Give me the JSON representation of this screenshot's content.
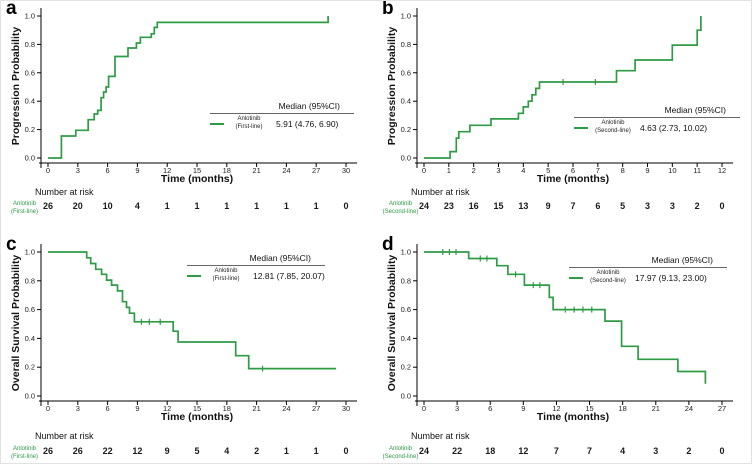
{
  "colors": {
    "curve_green": "#2e9b45",
    "axis": "#000000",
    "text": "#111111",
    "risk_label_green": "#2e9b45"
  },
  "chart_data": [
    {
      "type": "line",
      "panel_label": "a",
      "ylabel": "Progression Probability",
      "xlabel": "Time (months)",
      "x_ticks": [
        0,
        3,
        6,
        9,
        12,
        15,
        18,
        21,
        24,
        27,
        30
      ],
      "y_tick_labels": [
        "0.0",
        "0.2",
        "0.4",
        "0.6",
        "0.8",
        "1.0"
      ],
      "xlim": [
        0,
        30
      ],
      "ylim": [
        0,
        1
      ],
      "grid": false,
      "legend": {
        "header": "Median (95%CI)",
        "name_line1": "Anlotinib",
        "name_line2": "(First-line)",
        "value": "5.91 (4.76, 6.90)",
        "position": "lower-right"
      },
      "series": [
        {
          "name": "Anlotinib (First-line)",
          "color": "#2e9b45",
          "step_points": [
            [
              0,
              0
            ],
            [
              1.35,
              0
            ],
            [
              1.35,
              0.155
            ],
            [
              2.8,
              0.155
            ],
            [
              2.8,
              0.195
            ],
            [
              4.05,
              0.195
            ],
            [
              4.05,
              0.27
            ],
            [
              4.65,
              0.27
            ],
            [
              4.65,
              0.31
            ],
            [
              5.0,
              0.31
            ],
            [
              5.0,
              0.335
            ],
            [
              5.35,
              0.335
            ],
            [
              5.35,
              0.425
            ],
            [
              5.6,
              0.425
            ],
            [
              5.6,
              0.465
            ],
            [
              5.85,
              0.465
            ],
            [
              5.85,
              0.5
            ],
            [
              6.1,
              0.5
            ],
            [
              6.1,
              0.575
            ],
            [
              6.75,
              0.575
            ],
            [
              6.75,
              0.715
            ],
            [
              8.05,
              0.715
            ],
            [
              8.05,
              0.775
            ],
            [
              8.9,
              0.775
            ],
            [
              8.9,
              0.81
            ],
            [
              9.3,
              0.81
            ],
            [
              9.3,
              0.85
            ],
            [
              10.4,
              0.85
            ],
            [
              10.4,
              0.875
            ],
            [
              10.7,
              0.875
            ],
            [
              10.7,
              0.92
            ],
            [
              11.0,
              0.92
            ],
            [
              11.0,
              0.955
            ],
            [
              28.2,
              0.955
            ],
            [
              28.2,
              1.0
            ]
          ],
          "censor_marks": []
        }
      ],
      "number_at_risk": {
        "title": "Number at risk",
        "row_label_line1": "Anlotinib",
        "row_label_line2": "(First-line)",
        "values": [
          26,
          20,
          10,
          4,
          1,
          1,
          1,
          1,
          1,
          1,
          0
        ]
      }
    },
    {
      "type": "line",
      "panel_label": "b",
      "ylabel": "Progression Probability",
      "xlabel": "Time (months)",
      "x_ticks": [
        0,
        1,
        2,
        3,
        4,
        5,
        6,
        7,
        8,
        9,
        10,
        11,
        12
      ],
      "y_tick_labels": [
        "0.0",
        "0.2",
        "0.4",
        "0.6",
        "0.8",
        "1.0"
      ],
      "xlim": [
        0,
        12
      ],
      "ylim": [
        0,
        1
      ],
      "grid": false,
      "legend": {
        "header": "Median (95%CI)",
        "name_line1": "Anlotinib",
        "name_line2": "(Second-line)",
        "value": "4.63 (2.73, 10.02)",
        "position": "lower-right"
      },
      "series": [
        {
          "name": "Anlotinib (Second-line)",
          "color": "#2e9b45",
          "step_points": [
            [
              0,
              0
            ],
            [
              1.05,
              0
            ],
            [
              1.05,
              0.045
            ],
            [
              1.3,
              0.045
            ],
            [
              1.3,
              0.14
            ],
            [
              1.4,
              0.14
            ],
            [
              1.4,
              0.185
            ],
            [
              1.85,
              0.185
            ],
            [
              1.85,
              0.23
            ],
            [
              2.7,
              0.23
            ],
            [
              2.7,
              0.275
            ],
            [
              3.8,
              0.275
            ],
            [
              3.8,
              0.315
            ],
            [
              4.0,
              0.315
            ],
            [
              4.0,
              0.36
            ],
            [
              4.2,
              0.36
            ],
            [
              4.2,
              0.4
            ],
            [
              4.35,
              0.4
            ],
            [
              4.35,
              0.445
            ],
            [
              4.5,
              0.445
            ],
            [
              4.5,
              0.49
            ],
            [
              4.65,
              0.49
            ],
            [
              4.65,
              0.535
            ],
            [
              7.75,
              0.535
            ],
            [
              7.75,
              0.615
            ],
            [
              8.5,
              0.615
            ],
            [
              8.5,
              0.69
            ],
            [
              10.0,
              0.69
            ],
            [
              10.0,
              0.795
            ],
            [
              11.0,
              0.795
            ],
            [
              11.0,
              0.9
            ],
            [
              11.15,
              0.9
            ],
            [
              11.15,
              1.0
            ]
          ],
          "censor_marks": [
            [
              5.6,
              0.535
            ],
            [
              6.9,
              0.535
            ]
          ]
        }
      ],
      "number_at_risk": {
        "title": "Number at risk",
        "row_label_line1": "Anlotinib",
        "row_label_line2": "(Second-line)",
        "values": [
          24,
          23,
          16,
          15,
          13,
          9,
          7,
          6,
          5,
          3,
          3,
          2,
          0
        ]
      }
    },
    {
      "type": "line",
      "panel_label": "c",
      "ylabel": "Overall Survival Probability",
      "xlabel": "Time (months)",
      "x_ticks": [
        0,
        3,
        6,
        9,
        12,
        15,
        18,
        21,
        24,
        27,
        30
      ],
      "y_tick_labels": [
        "0.0",
        "0.2",
        "0.4",
        "0.6",
        "0.8",
        "1.0"
      ],
      "xlim": [
        0,
        30
      ],
      "ylim": [
        0,
        1
      ],
      "grid": false,
      "legend": {
        "header": "Median (95%CI)",
        "name_line1": "Anlotinib",
        "name_line2": "(First-line)",
        "value": "12.81 (7.85, 20.07)",
        "position": "upper-right"
      },
      "series": [
        {
          "name": "Anlotinib (First-line)",
          "color": "#2e9b45",
          "step_points": [
            [
              0,
              1
            ],
            [
              3.9,
              1
            ],
            [
              3.9,
              0.96
            ],
            [
              4.3,
              0.96
            ],
            [
              4.3,
              0.92
            ],
            [
              4.8,
              0.92
            ],
            [
              4.8,
              0.88
            ],
            [
              5.4,
              0.88
            ],
            [
              5.4,
              0.845
            ],
            [
              5.9,
              0.845
            ],
            [
              5.9,
              0.805
            ],
            [
              6.4,
              0.805
            ],
            [
              6.4,
              0.77
            ],
            [
              7.0,
              0.77
            ],
            [
              7.0,
              0.73
            ],
            [
              7.5,
              0.73
            ],
            [
              7.5,
              0.655
            ],
            [
              7.9,
              0.655
            ],
            [
              7.9,
              0.615
            ],
            [
              8.2,
              0.615
            ],
            [
              8.2,
              0.575
            ],
            [
              8.7,
              0.575
            ],
            [
              8.7,
              0.515
            ],
            [
              12.6,
              0.515
            ],
            [
              12.6,
              0.45
            ],
            [
              13.1,
              0.45
            ],
            [
              13.1,
              0.375
            ],
            [
              18.9,
              0.375
            ],
            [
              18.9,
              0.28
            ],
            [
              20.2,
              0.28
            ],
            [
              20.2,
              0.19
            ],
            [
              29.0,
              0.19
            ]
          ],
          "censor_marks": [
            [
              9.4,
              0.515
            ],
            [
              10.2,
              0.515
            ],
            [
              11.3,
              0.515
            ],
            [
              21.6,
              0.19
            ]
          ]
        }
      ],
      "number_at_risk": {
        "title": "Number at risk",
        "row_label_line1": "Anlotinib",
        "row_label_line2": "(First-line)",
        "values": [
          26,
          26,
          22,
          12,
          9,
          5,
          4,
          2,
          1,
          1,
          0
        ]
      }
    },
    {
      "type": "line",
      "panel_label": "d",
      "ylabel": "Overall Survival Probability",
      "xlabel": "Time (months)",
      "x_ticks": [
        0,
        3,
        6,
        9,
        12,
        15,
        18,
        21,
        24,
        27
      ],
      "y_tick_labels": [
        "0.0",
        "0.2",
        "0.4",
        "0.6",
        "0.8",
        "1.0"
      ],
      "xlim": [
        0,
        27
      ],
      "ylim": [
        0,
        1
      ],
      "grid": false,
      "legend": {
        "header": "Median (95%CI)",
        "name_line1": "Anlotinib",
        "name_line2": "(Second-line)",
        "value": "17.97 (9.13, 23.00)",
        "position": "upper-right"
      },
      "series": [
        {
          "name": "Anlotinib (Second-line)",
          "color": "#2e9b45",
          "step_points": [
            [
              0,
              1
            ],
            [
              4.05,
              1
            ],
            [
              4.05,
              0.955
            ],
            [
              6.6,
              0.955
            ],
            [
              6.6,
              0.905
            ],
            [
              7.6,
              0.905
            ],
            [
              7.6,
              0.845
            ],
            [
              9.1,
              0.845
            ],
            [
              9.1,
              0.77
            ],
            [
              11.35,
              0.77
            ],
            [
              11.35,
              0.685
            ],
            [
              11.7,
              0.685
            ],
            [
              11.7,
              0.6
            ],
            [
              16.4,
              0.6
            ],
            [
              16.4,
              0.52
            ],
            [
              17.9,
              0.52
            ],
            [
              17.9,
              0.345
            ],
            [
              19.4,
              0.345
            ],
            [
              19.4,
              0.255
            ],
            [
              23.0,
              0.255
            ],
            [
              23.0,
              0.17
            ],
            [
              25.5,
              0.17
            ],
            [
              25.5,
              0.085
            ]
          ],
          "censor_marks": [
            [
              1.7,
              1
            ],
            [
              2.3,
              1
            ],
            [
              2.9,
              1
            ],
            [
              5.1,
              0.955
            ],
            [
              5.7,
              0.955
            ],
            [
              8.3,
              0.845
            ],
            [
              9.9,
              0.77
            ],
            [
              10.5,
              0.77
            ],
            [
              12.8,
              0.6
            ],
            [
              13.6,
              0.6
            ],
            [
              14.4,
              0.6
            ],
            [
              15.2,
              0.6
            ]
          ]
        }
      ],
      "number_at_risk": {
        "title": "Number at risk",
        "row_label_line1": "Anlotinib",
        "row_label_line2": "(Second-line)",
        "values": [
          24,
          22,
          18,
          12,
          7,
          7,
          4,
          3,
          2,
          0
        ]
      }
    }
  ]
}
